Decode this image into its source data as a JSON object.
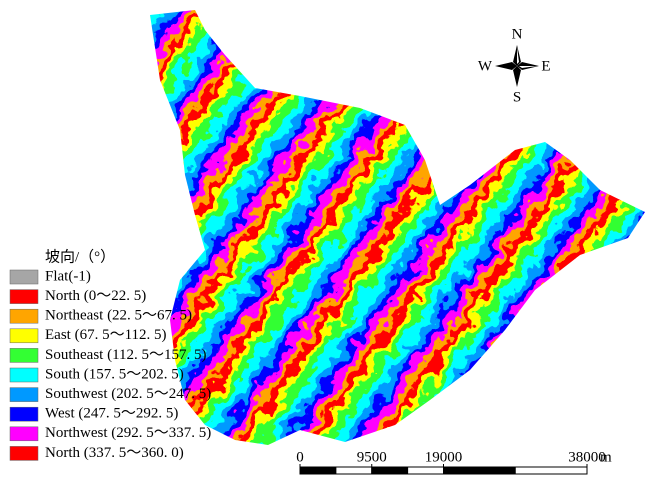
{
  "legend": {
    "title": "坡向/（°）",
    "items": [
      {
        "label": "Flat(-1)",
        "color": "#a6a6a6"
      },
      {
        "label": "North (0～22. 5)",
        "color": "#ff0000"
      },
      {
        "label": "Northeast (22. 5～67. 5)",
        "color": "#ffa500"
      },
      {
        "label": "East (67. 5～112. 5)",
        "color": "#ffff00"
      },
      {
        "label": "Southeast (112. 5～157. 5)",
        "color": "#33ff33"
      },
      {
        "label": "South (157. 5～202. 5)",
        "color": "#00ffff"
      },
      {
        "label": "Southwest (202. 5～247. 5)",
        "color": "#0099ff"
      },
      {
        "label": "West (247. 5～292. 5)",
        "color": "#0000ff"
      },
      {
        "label": "Northwest (292. 5～337. 5)",
        "color": "#ff00ff"
      },
      {
        "label": "North (337. 5～360. 0)",
        "color": "#ff0000"
      }
    ]
  },
  "compass": {
    "north": "N",
    "south": "S",
    "east": "E",
    "west": "W"
  },
  "scale_bar": {
    "ticks": [
      0,
      9500,
      19000,
      38000
    ],
    "unit": "m"
  }
}
